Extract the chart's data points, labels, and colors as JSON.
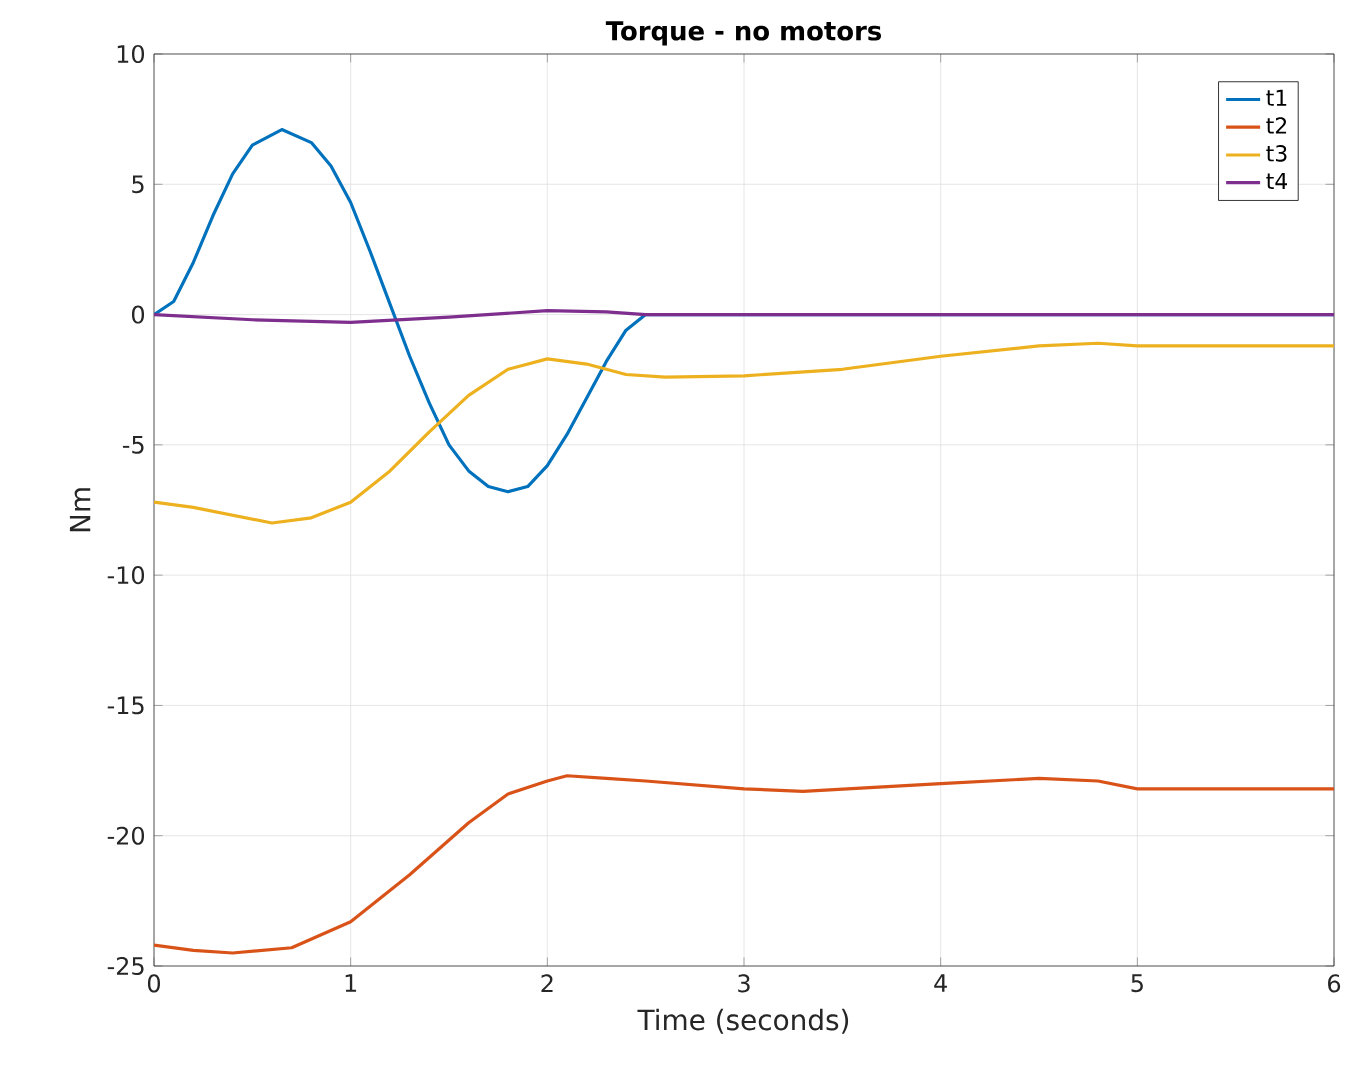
{
  "chart_data": {
    "type": "line",
    "title": "Torque - no motors",
    "xlabel": "Time (seconds)",
    "ylabel": "Nm",
    "xlim": [
      0,
      6
    ],
    "ylim": [
      -25,
      10
    ],
    "xticks": [
      0,
      1,
      2,
      3,
      4,
      5,
      6
    ],
    "yticks": [
      -25,
      -20,
      -15,
      -10,
      -5,
      0,
      5,
      10
    ],
    "grid": true,
    "legend": "top right",
    "line_style": "solid",
    "marker": "none",
    "series": [
      {
        "name": "t1",
        "color": "#0072bd",
        "x": [
          0,
          0.1,
          0.2,
          0.3,
          0.4,
          0.5,
          0.65,
          0.8,
          0.9,
          1.0,
          1.1,
          1.2,
          1.3,
          1.4,
          1.5,
          1.6,
          1.7,
          1.8,
          1.9,
          2.0,
          2.1,
          2.2,
          2.3,
          2.4,
          2.5,
          3,
          6
        ],
        "values": [
          0,
          0.5,
          2,
          3.8,
          5.4,
          6.5,
          7.1,
          6.6,
          5.7,
          4.3,
          2.4,
          0.4,
          -1.6,
          -3.4,
          -5,
          -6,
          -6.6,
          -6.8,
          -6.6,
          -5.8,
          -4.6,
          -3.2,
          -1.8,
          -0.6,
          0,
          0,
          0
        ]
      },
      {
        "name": "t2",
        "color": "#d95319",
        "x": [
          0,
          0.2,
          0.4,
          0.7,
          1.0,
          1.3,
          1.6,
          1.8,
          2.0,
          2.1,
          2.3,
          2.5,
          3,
          3.3,
          4,
          4.5,
          4.8,
          5,
          6
        ],
        "values": [
          -24.2,
          -24.4,
          -24.5,
          -24.3,
          -23.3,
          -21.5,
          -19.5,
          -18.4,
          -17.9,
          -17.7,
          -17.8,
          -17.9,
          -18.2,
          -18.3,
          -18.0,
          -17.8,
          -17.9,
          -18.2,
          -18.2
        ]
      },
      {
        "name": "t3",
        "color": "#edb120",
        "x": [
          0,
          0.2,
          0.6,
          0.8,
          1.0,
          1.2,
          1.4,
          1.6,
          1.8,
          2.0,
          2.2,
          2.4,
          2.6,
          3,
          3.5,
          4,
          4.5,
          4.8,
          5,
          6
        ],
        "values": [
          -7.2,
          -7.4,
          -8.0,
          -7.8,
          -7.2,
          -6.0,
          -4.5,
          -3.1,
          -2.1,
          -1.7,
          -1.9,
          -2.3,
          -2.4,
          -2.35,
          -2.1,
          -1.6,
          -1.2,
          -1.1,
          -1.2,
          -1.2
        ]
      },
      {
        "name": "t4",
        "color": "#7e2f8e",
        "x": [
          0,
          0.5,
          1.0,
          1.5,
          2.0,
          2.3,
          2.5,
          6
        ],
        "values": [
          0,
          -0.2,
          -0.3,
          -0.1,
          0.15,
          0.1,
          0,
          0
        ]
      }
    ]
  }
}
